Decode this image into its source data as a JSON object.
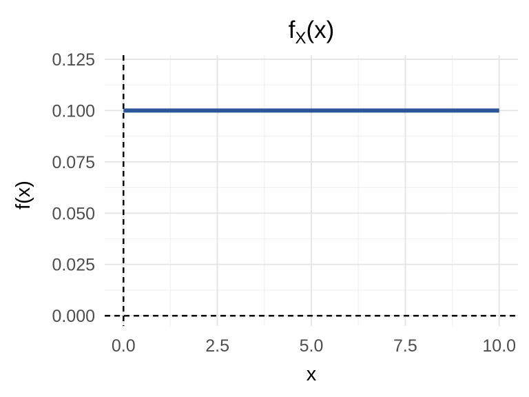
{
  "chart_data": {
    "type": "line",
    "title": "f",
    "title_subscript": "X",
    "title_suffix": "(x)",
    "xlabel": "x",
    "ylabel": "f(x)",
    "xlim": [
      -0.5,
      10.5
    ],
    "ylim": [
      -0.005,
      0.127
    ],
    "x_ticks": [
      0,
      2.5,
      5,
      7.5,
      10
    ],
    "x_tick_labels": [
      "0.0",
      "2.5",
      "5.0",
      "7.5",
      "10.0"
    ],
    "y_ticks": [
      0,
      0.025,
      0.05,
      0.075,
      0.1,
      0.125
    ],
    "y_tick_labels": [
      "0.000",
      "0.025",
      "0.050",
      "0.075",
      "0.100",
      "0.125"
    ],
    "grid": true,
    "series": [
      {
        "x": [
          0,
          10
        ],
        "y": [
          0.1,
          0.1
        ],
        "color": "#2e5597"
      }
    ],
    "reference_lines": [
      {
        "orientation": "vertical",
        "value": 0,
        "style": "dashed",
        "color": "#000000"
      },
      {
        "orientation": "horizontal",
        "value": 0,
        "style": "dashed",
        "color": "#000000"
      }
    ]
  }
}
